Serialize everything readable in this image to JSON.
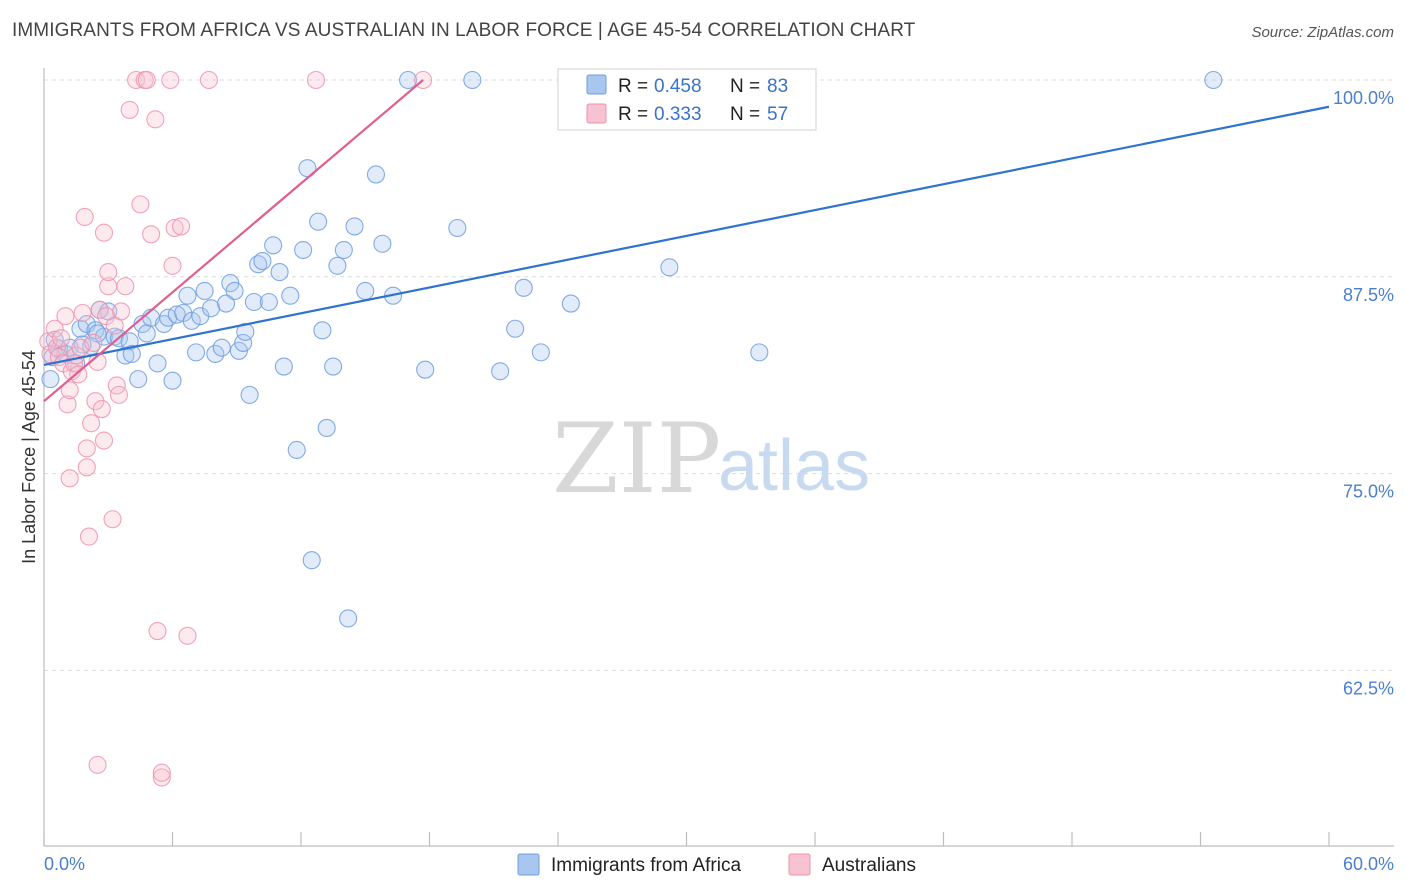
{
  "title": "IMMIGRANTS FROM AFRICA VS AUSTRALIAN IN LABOR FORCE | AGE 45-54 CORRELATION CHART",
  "source": "Source: ZipAtlas.com",
  "watermark": {
    "zip": "ZIP",
    "atlas": "atlas"
  },
  "colors": {
    "blue": "#6d9ee0",
    "blue_fill": "#a9c6ee",
    "blue_line": "#2f73d0",
    "pink": "#ef92ad",
    "pink_fill": "#f7c2d2",
    "pink_line": "#e05f8d",
    "tick_text": "#4a7fd0",
    "grid": "#dcdcdc"
  },
  "legend": {
    "r_label": "R =",
    "n_label": "N =",
    "rows": [
      {
        "r": "0.458",
        "n": "83"
      },
      {
        "r": "0.333",
        "n": "57"
      }
    ]
  },
  "chart_data": {
    "type": "scatter",
    "title": "IMMIGRANTS FROM AFRICA VS AUSTRALIAN IN LABOR FORCE | AGE 45-54 CORRELATION CHART",
    "xlabel": "",
    "ylabel": "In Labor Force | Age 45-54",
    "xlim": [
      0,
      60
    ],
    "ylim": [
      49.5,
      101
    ],
    "x_tick_labels": [
      "0.0%",
      "60.0%"
    ],
    "y_ticks": [
      100,
      87.5,
      75,
      62.5
    ],
    "y_tick_labels": [
      "100.0%",
      "87.5%",
      "75.0%",
      "62.5%"
    ],
    "grid": "horizontal dashed",
    "legend_position": "top-center",
    "series": [
      {
        "name": "Immigrants from Africa",
        "color": "#6d9ee0",
        "trend": {
          "x": [
            0,
            60
          ],
          "y": [
            81.9,
            98.3
          ]
        },
        "points": [
          [
            0.4,
            82.4
          ],
          [
            0.7,
            82.9
          ],
          [
            1.0,
            82.6
          ],
          [
            1.2,
            83.0
          ],
          [
            1.5,
            82.0
          ],
          [
            1.7,
            84.2
          ],
          [
            2.0,
            84.5
          ],
          [
            2.2,
            83.1
          ],
          [
            2.4,
            84.1
          ],
          [
            2.6,
            85.4
          ],
          [
            2.8,
            83.7
          ],
          [
            3.0,
            85.3
          ],
          [
            3.3,
            83.7
          ],
          [
            3.5,
            83.6
          ],
          [
            3.8,
            82.5
          ],
          [
            4.0,
            83.4
          ],
          [
            4.1,
            82.6
          ],
          [
            4.4,
            81.0
          ],
          [
            4.6,
            84.5
          ],
          [
            4.8,
            83.9
          ],
          [
            5.0,
            84.9
          ],
          [
            5.3,
            82.0
          ],
          [
            5.6,
            84.5
          ],
          [
            5.8,
            84.9
          ],
          [
            6.0,
            80.9
          ],
          [
            6.2,
            85.1
          ],
          [
            6.5,
            85.2
          ],
          [
            6.7,
            86.3
          ],
          [
            6.9,
            84.7
          ],
          [
            7.1,
            82.7
          ],
          [
            7.3,
            85.0
          ],
          [
            7.5,
            86.6
          ],
          [
            7.8,
            85.5
          ],
          [
            8.0,
            82.6
          ],
          [
            8.3,
            83.0
          ],
          [
            8.5,
            85.8
          ],
          [
            8.7,
            87.1
          ],
          [
            8.9,
            86.6
          ],
          [
            9.1,
            82.8
          ],
          [
            9.3,
            83.3
          ],
          [
            9.6,
            80.0
          ],
          [
            9.8,
            85.9
          ],
          [
            10.0,
            88.3
          ],
          [
            10.2,
            88.5
          ],
          [
            10.5,
            85.9
          ],
          [
            10.7,
            89.5
          ],
          [
            11.0,
            87.8
          ],
          [
            11.2,
            81.8
          ],
          [
            11.5,
            86.3
          ],
          [
            11.8,
            76.5
          ],
          [
            12.1,
            89.2
          ],
          [
            12.3,
            94.4
          ],
          [
            12.5,
            69.5
          ],
          [
            12.8,
            91.0
          ],
          [
            13.0,
            84.1
          ],
          [
            13.2,
            77.9
          ],
          [
            13.5,
            81.8
          ],
          [
            13.7,
            88.2
          ],
          [
            14.0,
            89.2
          ],
          [
            14.2,
            65.8
          ],
          [
            14.5,
            90.7
          ],
          [
            15.0,
            86.6
          ],
          [
            15.5,
            94.0
          ],
          [
            15.8,
            89.6
          ],
          [
            16.3,
            86.3
          ],
          [
            17.0,
            100.0
          ],
          [
            17.8,
            81.6
          ],
          [
            19.3,
            90.6
          ],
          [
            20.0,
            100.0
          ],
          [
            21.3,
            81.5
          ],
          [
            22.0,
            84.2
          ],
          [
            22.4,
            86.8
          ],
          [
            23.2,
            82.7
          ],
          [
            24.6,
            85.8
          ],
          [
            29.2,
            88.1
          ],
          [
            33.4,
            82.7
          ],
          [
            34.1,
            100.0
          ],
          [
            54.6,
            100.0
          ],
          [
            0.3,
            81.0
          ],
          [
            0.5,
            83.5
          ],
          [
            1.8,
            83.2
          ],
          [
            2.5,
            83.9
          ],
          [
            9.4,
            84.0
          ]
        ]
      },
      {
        "name": "Australians",
        "color": "#ef92ad",
        "trend": {
          "x": [
            0,
            17.7
          ],
          "y": [
            79.6,
            100.0
          ]
        },
        "points": [
          [
            0.2,
            83.4
          ],
          [
            0.3,
            82.6
          ],
          [
            0.5,
            84.2
          ],
          [
            0.6,
            83.0
          ],
          [
            0.7,
            82.4
          ],
          [
            0.8,
            83.6
          ],
          [
            0.9,
            82.0
          ],
          [
            1.0,
            85.0
          ],
          [
            1.1,
            79.4
          ],
          [
            1.2,
            80.3
          ],
          [
            1.2,
            74.7
          ],
          [
            1.3,
            81.5
          ],
          [
            1.4,
            82.0
          ],
          [
            1.5,
            82.5
          ],
          [
            1.6,
            81.3
          ],
          [
            1.7,
            83.0
          ],
          [
            1.8,
            85.2
          ],
          [
            1.9,
            91.3
          ],
          [
            2.0,
            75.4
          ],
          [
            2.0,
            76.6
          ],
          [
            2.1,
            71.0
          ],
          [
            2.2,
            78.2
          ],
          [
            2.3,
            83.3
          ],
          [
            2.4,
            79.6
          ],
          [
            2.5,
            82.1
          ],
          [
            2.5,
            56.5
          ],
          [
            2.6,
            85.4
          ],
          [
            2.7,
            79.1
          ],
          [
            2.8,
            77.1
          ],
          [
            2.8,
            90.3
          ],
          [
            2.9,
            85.0
          ],
          [
            3.0,
            86.9
          ],
          [
            3.0,
            87.8
          ],
          [
            3.2,
            72.1
          ],
          [
            3.3,
            84.4
          ],
          [
            3.4,
            80.6
          ],
          [
            3.5,
            80.0
          ],
          [
            3.6,
            85.3
          ],
          [
            3.8,
            86.9
          ],
          [
            4.0,
            98.1
          ],
          [
            4.3,
            100.0
          ],
          [
            4.5,
            92.1
          ],
          [
            4.7,
            100.0
          ],
          [
            4.8,
            100.0
          ],
          [
            5.0,
            90.2
          ],
          [
            5.2,
            97.5
          ],
          [
            5.3,
            65.0
          ],
          [
            5.5,
            55.7
          ],
          [
            5.5,
            56.0
          ],
          [
            5.9,
            100.0
          ],
          [
            6.0,
            88.2
          ],
          [
            6.1,
            90.6
          ],
          [
            6.4,
            90.7
          ],
          [
            6.7,
            64.7
          ],
          [
            7.7,
            100.0
          ],
          [
            12.7,
            100.0
          ],
          [
            17.7,
            100.0
          ]
        ]
      }
    ]
  },
  "bottom_legend": [
    "Immigrants from Africa",
    "Australians"
  ]
}
